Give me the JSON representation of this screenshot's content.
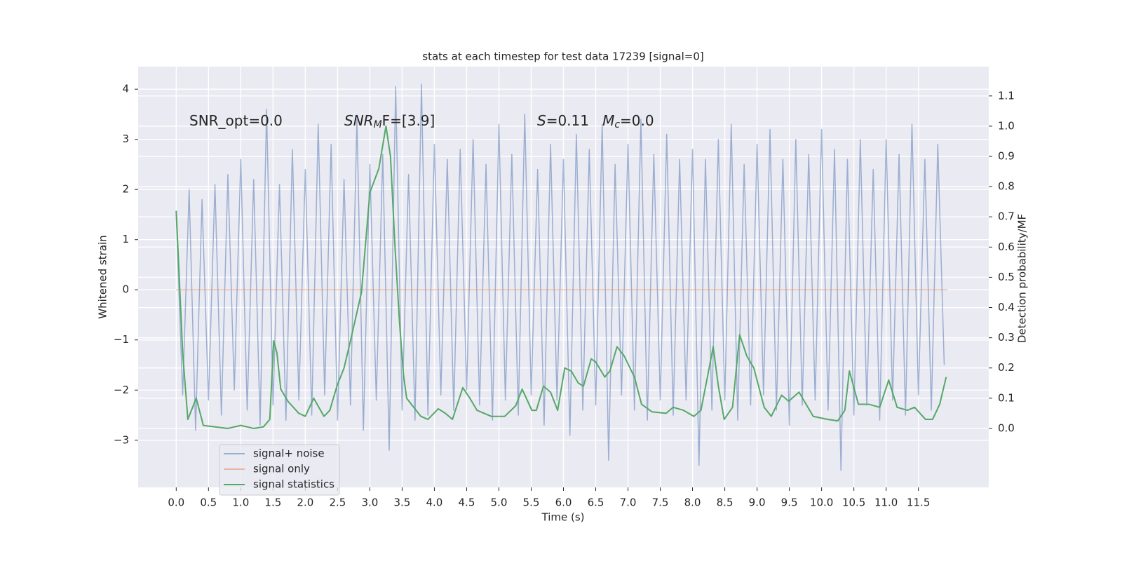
{
  "chart_data": {
    "type": "line",
    "title": "stats at each timestep for test data 17239 [signal=0]",
    "xlabel": "Time (s)",
    "ylabel": "Whitened strain",
    "y2label": "Detection probability/MF",
    "xlim": [
      -0.59,
      12.59
    ],
    "ylim": [
      -3.94,
      4.45
    ],
    "y2lim": [
      -0.195,
      1.197
    ],
    "xticks": [
      {
        "value": 0,
        "label": "0.0"
      },
      {
        "value": 0.5,
        "label": "0.5"
      },
      {
        "value": 1,
        "label": "1.0"
      },
      {
        "value": 1.5,
        "label": "1.5"
      },
      {
        "value": 2,
        "label": "2.0"
      },
      {
        "value": 2.5,
        "label": "2.5"
      },
      {
        "value": 3,
        "label": "3.0"
      },
      {
        "value": 3.5,
        "label": "3.5"
      },
      {
        "value": 4,
        "label": "4.0"
      },
      {
        "value": 4.5,
        "label": "4.5"
      },
      {
        "value": 5,
        "label": "5.0"
      },
      {
        "value": 5.5,
        "label": "5.5"
      },
      {
        "value": 6,
        "label": "6.0"
      },
      {
        "value": 6.5,
        "label": "6.5"
      },
      {
        "value": 7,
        "label": "7.0"
      },
      {
        "value": 7.5,
        "label": "7.5"
      },
      {
        "value": 8,
        "label": "8.0"
      },
      {
        "value": 8.5,
        "label": "8.5"
      },
      {
        "value": 9,
        "label": "9.0"
      },
      {
        "value": 9.5,
        "label": "9.5"
      },
      {
        "value": 10,
        "label": "10.0"
      },
      {
        "value": 10.5,
        "label": "10.5"
      },
      {
        "value": 11,
        "label": "11.0"
      },
      {
        "value": 11.5,
        "label": "11.5"
      }
    ],
    "yticks": [
      {
        "value": -3,
        "label": "−3"
      },
      {
        "value": -2,
        "label": "−2"
      },
      {
        "value": -1,
        "label": "−1"
      },
      0,
      1,
      2,
      3,
      4
    ],
    "y2ticks": [
      {
        "value": 0,
        "label": "0.0"
      },
      {
        "value": 0.1,
        "label": "0.1"
      },
      {
        "value": 0.2,
        "label": "0.2"
      },
      {
        "value": 0.3,
        "label": "0.3"
      },
      {
        "value": 0.4,
        "label": "0.4"
      },
      {
        "value": 0.5,
        "label": "0.5"
      },
      {
        "value": 0.6,
        "label": "0.6"
      },
      {
        "value": 0.7,
        "label": "0.7"
      },
      {
        "value": 0.8,
        "label": "0.8"
      },
      {
        "value": 0.9,
        "label": "0.9"
      },
      {
        "value": 1,
        "label": "1.0"
      },
      {
        "value": 1.1,
        "label": "1.1"
      }
    ],
    "grid": true,
    "background": "#eaeaf2",
    "legend": "lower left",
    "annotations": [
      {
        "parts": [
          {
            "t": "SNR_opt=0.0"
          }
        ]
      },
      {
        "parts": [
          {
            "t": "SNR",
            "style": "italic"
          },
          {
            "t": "M",
            "style": "sub"
          },
          {
            "t": "F=[3.9]"
          }
        ]
      },
      {
        "parts": [
          {
            "t": "S",
            "style": "italic"
          },
          {
            "t": "=0.11   "
          },
          {
            "t": "M",
            "style": "italic"
          },
          {
            "t": "c",
            "style": "sub"
          },
          {
            "t": "=0.0"
          }
        ]
      }
    ],
    "series": [
      {
        "name": "signal+ noise",
        "color": "#4c72b0",
        "alpha": 0.5,
        "x": [
          0,
          0.1,
          0.2,
          0.3,
          0.4,
          0.5,
          0.6,
          0.7,
          0.8,
          0.9,
          1,
          1.1,
          1.2,
          1.3,
          1.4,
          1.5,
          1.6,
          1.7,
          1.8,
          1.9,
          2,
          2.1,
          2.2,
          2.3,
          2.4,
          2.5,
          2.6,
          2.7,
          2.8,
          2.9,
          3,
          3.1,
          3.2,
          3.3,
          3.4,
          3.5,
          3.6,
          3.7,
          3.8,
          3.9,
          4,
          4.1,
          4.2,
          4.3,
          4.4,
          4.5,
          4.6,
          4.7,
          4.8,
          4.9,
          5,
          5.1,
          5.2,
          5.3,
          5.4,
          5.5,
          5.6,
          5.7,
          5.8,
          5.9,
          6,
          6.1,
          6.2,
          6.3,
          6.4,
          6.5,
          6.6,
          6.7,
          6.8,
          6.9,
          7,
          7.1,
          7.2,
          7.3,
          7.4,
          7.5,
          7.6,
          7.7,
          7.8,
          7.9,
          8,
          8.1,
          8.2,
          8.3,
          8.4,
          8.5,
          8.6,
          8.7,
          8.8,
          8.9,
          9,
          9.1,
          9.2,
          9.3,
          9.4,
          9.5,
          9.6,
          9.7,
          9.8,
          9.9,
          10,
          10.1,
          10.2,
          10.3,
          10.4,
          10.5,
          10.6,
          10.7,
          10.8,
          10.9,
          11,
          11.1,
          11.2,
          11.3,
          11.4,
          11.5,
          11.6,
          11.7,
          11.8,
          11.9
        ],
        "values": [
          1.5,
          -2.1,
          2.0,
          -2.8,
          1.8,
          -2.2,
          2.1,
          -2.5,
          2.3,
          -2.0,
          2.6,
          -2.4,
          2.2,
          -2.7,
          3.6,
          -2.3,
          2.1,
          -2.6,
          2.8,
          -2.2,
          2.4,
          -2.5,
          3.3,
          -2.1,
          2.9,
          -2.6,
          2.2,
          -2.3,
          3.4,
          -2.8,
          2.5,
          -2.2,
          2.7,
          -3.2,
          4.05,
          -2.4,
          2.3,
          -2.6,
          4.1,
          -2.5,
          2.9,
          -2.1,
          2.6,
          -2.4,
          2.8,
          -2.0,
          3.0,
          -2.3,
          2.5,
          -2.6,
          3.3,
          -2.2,
          2.7,
          -2.5,
          3.5,
          -2.1,
          2.4,
          -2.7,
          2.9,
          -2.2,
          2.6,
          -2.9,
          3.1,
          -2.4,
          2.8,
          -2.3,
          3.3,
          -3.4,
          2.5,
          -2.1,
          2.9,
          -2.4,
          3.4,
          -2.6,
          2.7,
          -2.2,
          3.1,
          -2.5,
          2.6,
          -2.2,
          2.8,
          -3.5,
          2.6,
          -2.4,
          3.0,
          -2.2,
          3.3,
          -2.6,
          2.5,
          -2.3,
          2.9,
          -2.1,
          3.2,
          -2.4,
          2.6,
          -2.7,
          3.0,
          -2.3,
          2.7,
          -2.2,
          3.2,
          -2.4,
          2.8,
          -3.6,
          2.6,
          -2.5,
          3.0,
          -2.3,
          2.4,
          -2.6,
          3.0,
          -2.2,
          2.7,
          -2.5,
          3.3,
          -2.1,
          2.6,
          -2.4,
          2.9,
          -1.5
        ]
      },
      {
        "name": "signal only",
        "color": "#dd8452",
        "alpha": 0.5,
        "x": [
          0,
          11.95
        ],
        "values": [
          0,
          0
        ]
      },
      {
        "name": "signal statistics",
        "color": "#55a868",
        "alpha": 1,
        "axis": "y2",
        "x": [
          0,
          0.1,
          0.18,
          0.31,
          0.42,
          0.6,
          0.8,
          1,
          1.2,
          1.35,
          1.45,
          1.51,
          1.56,
          1.62,
          1.73,
          1.9,
          2.0,
          2.13,
          2.29,
          2.38,
          2.49,
          2.6,
          2.7,
          2.87,
          3.0,
          3.14,
          3.25,
          3.32,
          3.39,
          3.46,
          3.52,
          3.57,
          3.68,
          3.79,
          3.9,
          4.06,
          4.17,
          4.28,
          4.44,
          4.55,
          4.66,
          4.88,
          5.09,
          5.26,
          5.36,
          5.51,
          5.58,
          5.69,
          5.8,
          5.91,
          6.02,
          6.12,
          6.23,
          6.31,
          6.43,
          6.5,
          6.64,
          6.72,
          6.83,
          6.94,
          7.1,
          7.21,
          7.37,
          7.59,
          7.7,
          7.86,
          8.02,
          8.13,
          8.24,
          8.32,
          8.4,
          8.49,
          8.62,
          8.73,
          8.84,
          8.95,
          9.11,
          9.22,
          9.38,
          9.49,
          9.65,
          9.76,
          9.87,
          10.09,
          10.25,
          10.36,
          10.43,
          10.57,
          10.73,
          10.9,
          11.04,
          11.17,
          11.33,
          11.44,
          11.61,
          11.72,
          11.83,
          11.93
        ],
        "values": [
          0.72,
          0.25,
          0.03,
          0.1,
          0.01,
          0.005,
          0.0,
          0.01,
          0.0,
          0.005,
          0.03,
          0.29,
          0.25,
          0.13,
          0.09,
          0.05,
          0.04,
          0.1,
          0.04,
          0.06,
          0.14,
          0.2,
          0.29,
          0.45,
          0.78,
          0.86,
          1.0,
          0.9,
          0.6,
          0.35,
          0.18,
          0.1,
          0.07,
          0.04,
          0.03,
          0.065,
          0.05,
          0.03,
          0.135,
          0.1,
          0.06,
          0.04,
          0.04,
          0.075,
          0.13,
          0.06,
          0.06,
          0.14,
          0.12,
          0.06,
          0.2,
          0.19,
          0.15,
          0.14,
          0.23,
          0.22,
          0.17,
          0.19,
          0.27,
          0.24,
          0.17,
          0.08,
          0.055,
          0.05,
          0.07,
          0.06,
          0.04,
          0.06,
          0.18,
          0.27,
          0.14,
          0.03,
          0.07,
          0.31,
          0.24,
          0.2,
          0.07,
          0.04,
          0.11,
          0.09,
          0.12,
          0.08,
          0.04,
          0.03,
          0.025,
          0.06,
          0.19,
          0.08,
          0.08,
          0.07,
          0.16,
          0.07,
          0.06,
          0.07,
          0.03,
          0.03,
          0.08,
          0.17
        ]
      }
    ]
  }
}
